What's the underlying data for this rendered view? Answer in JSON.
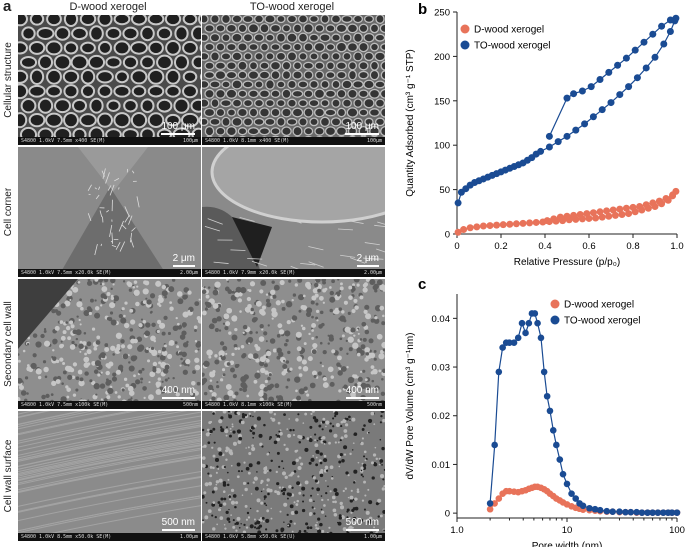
{
  "panel_a": {
    "letter": "a",
    "columns": [
      "D-wood xerogel",
      "TO-wood xerogel"
    ],
    "rows": [
      {
        "label": "Cellular structure",
        "scale": [
          "100 μm",
          "100 μm"
        ],
        "footer": [
          "S4800 1.0kV 7.5mm x400 SE(M)",
          "S4800 1.0kV 8.1mm x400 SE(M)"
        ],
        "footer_right": [
          "100μm",
          "100μm"
        ],
        "texture": "cells"
      },
      {
        "label": "Cell corner",
        "scale": [
          "2 μm",
          "2 μm"
        ],
        "footer": [
          "S4800 1.0kV 7.5mm x20.0k SE(M)",
          "S4800 1.0kV 7.9mm x20.0k SE(M)"
        ],
        "footer_right": [
          "2.00μm",
          "2.00μm"
        ],
        "texture": "corner"
      },
      {
        "label": "Secondary cell wall",
        "scale": [
          "400 nm",
          "400 nm"
        ],
        "footer": [
          "S4800 1.0kV 7.5mm x100k SE(M)",
          "S4800 1.0kV 8.1mm x100k SE(M)"
        ],
        "footer_right": [
          "500nm",
          "500nm"
        ],
        "texture": "grain"
      },
      {
        "label": "Cell wall surface",
        "scale": [
          "500 nm",
          "500 nm"
        ],
        "footer": [
          "S4800 1.0kV 8.5mm x50.0k SE(M)",
          "S4800 1.0kV 5.8mm x50.0k SE(U)"
        ],
        "footer_right": [
          "1.00μm",
          "1.00μm"
        ],
        "texture": "surface"
      }
    ]
  },
  "colors": {
    "d_wood": "#e8735a",
    "to_wood": "#1a4b93"
  },
  "chart_data": [
    {
      "panel": "b",
      "type": "line",
      "xlabel": "Relative Pressure (p/p₀)",
      "ylabel": "Quantity Adsorbed (cm³ g⁻¹ STP)",
      "xlim": [
        0,
        1.0
      ],
      "ylim": [
        0,
        250
      ],
      "xticks": [
        "0",
        "0.2",
        "0.4",
        "0.6",
        "0.8",
        "1.0"
      ],
      "yticks": [
        "0",
        "50",
        "100",
        "150",
        "200",
        "250"
      ],
      "legend": "top-left",
      "series": [
        {
          "name": "D-wood xerogel",
          "x": [
            0.005,
            0.03,
            0.06,
            0.09,
            0.12,
            0.15,
            0.18,
            0.21,
            0.24,
            0.27,
            0.3,
            0.33,
            0.36,
            0.39,
            0.42,
            0.45,
            0.48,
            0.51,
            0.54,
            0.57,
            0.6,
            0.63,
            0.66,
            0.69,
            0.72,
            0.75,
            0.78,
            0.81,
            0.84,
            0.87,
            0.9,
            0.93,
            0.96,
            0.98,
            0.995,
            0.98,
            0.95,
            0.92,
            0.89,
            0.86,
            0.83,
            0.8,
            0.77,
            0.74,
            0.71,
            0.68,
            0.65,
            0.62,
            0.59,
            0.56,
            0.53,
            0.5,
            0.47,
            0.44,
            0.41
          ],
          "y": [
            2,
            5,
            7,
            8,
            9,
            9.5,
            10,
            10.5,
            11,
            11.5,
            12,
            12.5,
            13,
            13.5,
            14,
            14.5,
            15,
            16,
            16.5,
            17,
            17.5,
            18,
            19,
            20,
            21,
            22,
            23,
            25,
            27,
            29,
            31,
            34,
            38,
            43,
            48,
            44,
            40,
            37,
            35,
            33,
            31,
            30,
            29,
            28,
            27,
            26,
            25,
            24,
            23,
            22,
            21,
            20,
            19,
            17,
            15
          ]
        },
        {
          "name": "TO-wood xerogel",
          "x": [
            0.005,
            0.02,
            0.04,
            0.06,
            0.08,
            0.1,
            0.12,
            0.14,
            0.16,
            0.18,
            0.2,
            0.22,
            0.24,
            0.26,
            0.28,
            0.3,
            0.32,
            0.34,
            0.36,
            0.38,
            0.42,
            0.46,
            0.5,
            0.54,
            0.58,
            0.62,
            0.66,
            0.7,
            0.74,
            0.78,
            0.82,
            0.86,
            0.9,
            0.94,
            0.97,
            0.99,
            0.995,
            0.97,
            0.93,
            0.89,
            0.85,
            0.81,
            0.77,
            0.73,
            0.69,
            0.65,
            0.61,
            0.57,
            0.53,
            0.5,
            0.42
          ],
          "y": [
            35,
            47,
            51,
            55,
            58,
            60,
            62,
            64,
            66,
            68,
            70,
            72,
            74,
            76,
            78,
            80,
            83,
            86,
            90,
            93,
            98,
            104,
            110,
            117,
            124,
            132,
            140,
            148,
            157,
            166,
            176,
            187,
            199,
            214,
            228,
            240,
            243,
            241,
            234,
            225,
            216,
            207,
            198,
            190,
            182,
            174,
            166,
            161,
            158,
            153,
            110
          ]
        }
      ]
    },
    {
      "panel": "c",
      "type": "line",
      "xlabel": "Pore width (nm)",
      "ylabel": "dV/dW Pore Volume (cm³ g⁻¹nm)",
      "xscale": "log",
      "xlim": [
        1.0,
        100
      ],
      "ylim": [
        -0.001,
        0.045
      ],
      "xticks": [
        "1.0",
        "10",
        "100"
      ],
      "yticks": [
        "0",
        "0.01",
        "0.02",
        "0.03",
        "0.04"
      ],
      "legend": "top-right",
      "series": [
        {
          "name": "D-wood xerogel",
          "x": [
            2.0,
            2.2,
            2.4,
            2.6,
            2.8,
            3.0,
            3.3,
            3.6,
            3.9,
            4.2,
            4.5,
            4.8,
            5.1,
            5.4,
            5.8,
            6.2,
            6.6,
            7.0,
            7.5,
            8.0,
            8.6,
            9.2,
            10,
            11,
            12,
            13,
            14,
            16,
            18,
            20,
            23,
            26,
            30,
            34,
            38,
            43,
            48,
            54,
            60,
            67,
            75,
            83,
            90,
            100
          ],
          "y": [
            0.0008,
            0.002,
            0.003,
            0.004,
            0.0045,
            0.0045,
            0.0044,
            0.0043,
            0.0045,
            0.0047,
            0.005,
            0.0052,
            0.0054,
            0.0054,
            0.0052,
            0.0049,
            0.0045,
            0.004,
            0.0035,
            0.003,
            0.0026,
            0.0022,
            0.0018,
            0.0014,
            0.0011,
            0.0009,
            0.0007,
            0.0006,
            0.0005,
            0.0004,
            0.0003,
            0.0003,
            0.0002,
            0.0002,
            0.0002,
            0.0001,
            0.0001,
            0.0001,
            0.0001,
            0.0001,
            0.0001,
            0.0001,
            0.0001,
            0.0001
          ]
        },
        {
          "name": "TO-wood xerogel",
          "x": [
            2.0,
            2.2,
            2.4,
            2.6,
            2.8,
            3.0,
            3.3,
            3.6,
            3.9,
            4.2,
            4.5,
            4.8,
            5.1,
            5.4,
            5.8,
            6.2,
            6.6,
            7.0,
            7.5,
            8.0,
            8.6,
            9.2,
            10,
            11,
            12,
            13,
            14,
            16,
            18,
            20,
            23,
            26,
            30,
            34,
            38,
            43,
            48,
            54,
            60,
            67,
            75,
            83,
            90,
            100
          ],
          "y": [
            0.002,
            0.014,
            0.029,
            0.034,
            0.035,
            0.035,
            0.035,
            0.036,
            0.039,
            0.037,
            0.039,
            0.041,
            0.041,
            0.039,
            0.036,
            0.029,
            0.024,
            0.021,
            0.017,
            0.014,
            0.011,
            0.008,
            0.006,
            0.004,
            0.003,
            0.002,
            0.0015,
            0.001,
            0.0008,
            0.0006,
            0.0004,
            0.0003,
            0.0003,
            0.0002,
            0.0002,
            0.0002,
            0.0001,
            0.0001,
            0.0001,
            0.0001,
            0.0001,
            0.0001,
            0.0001,
            0.0001
          ]
        }
      ]
    }
  ]
}
